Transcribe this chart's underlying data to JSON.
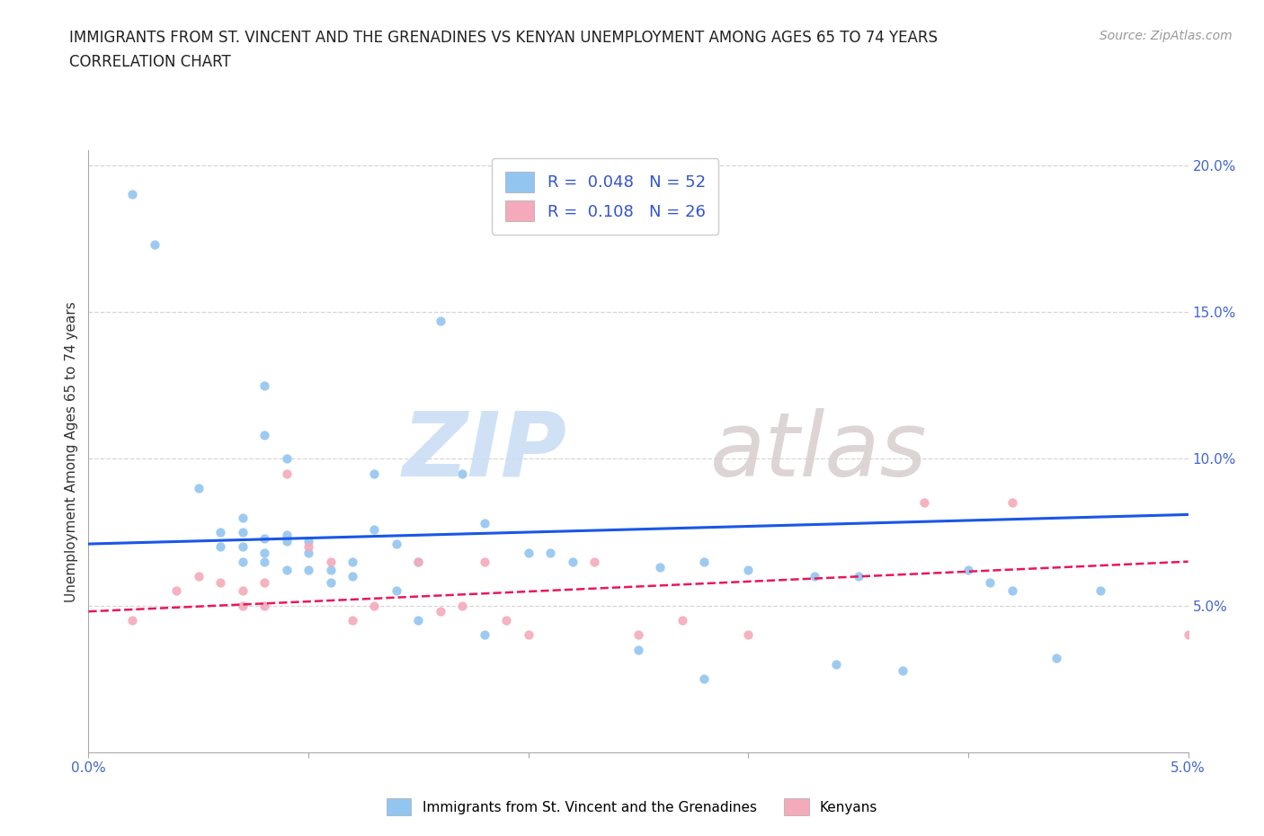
{
  "title_line1": "IMMIGRANTS FROM ST. VINCENT AND THE GRENADINES VS KENYAN UNEMPLOYMENT AMONG AGES 65 TO 74 YEARS",
  "title_line2": "CORRELATION CHART",
  "source_text": "Source: ZipAtlas.com",
  "ylabel": "Unemployment Among Ages 65 to 74 years",
  "xlim": [
    0.0,
    0.05
  ],
  "ylim": [
    0.0,
    0.205
  ],
  "blue_color": "#92C5F0",
  "pink_color": "#F4AABB",
  "blue_line_color": "#1A56E8",
  "pink_line_color": "#E8185A",
  "legend_text_color": "#3355CC",
  "tick_color": "#4466CC",
  "ylabel_color": "#333333",
  "title_color": "#222222",
  "source_color": "#999999",
  "grid_color": "#CCCCCC",
  "background_color": "#FFFFFF",
  "blue_scatter_x": [
    0.002,
    0.003,
    0.005,
    0.006,
    0.006,
    0.007,
    0.007,
    0.007,
    0.007,
    0.008,
    0.008,
    0.008,
    0.008,
    0.008,
    0.009,
    0.009,
    0.009,
    0.009,
    0.01,
    0.01,
    0.01,
    0.011,
    0.011,
    0.012,
    0.012,
    0.013,
    0.013,
    0.014,
    0.014,
    0.015,
    0.015,
    0.016,
    0.017,
    0.018,
    0.018,
    0.02,
    0.021,
    0.022,
    0.025,
    0.026,
    0.028,
    0.028,
    0.03,
    0.033,
    0.034,
    0.035,
    0.037,
    0.04,
    0.041,
    0.042,
    0.044,
    0.046
  ],
  "blue_scatter_y": [
    0.19,
    0.173,
    0.09,
    0.075,
    0.07,
    0.08,
    0.075,
    0.07,
    0.065,
    0.125,
    0.108,
    0.073,
    0.068,
    0.065,
    0.1,
    0.074,
    0.072,
    0.062,
    0.072,
    0.068,
    0.062,
    0.062,
    0.058,
    0.065,
    0.06,
    0.095,
    0.076,
    0.071,
    0.055,
    0.065,
    0.045,
    0.147,
    0.095,
    0.078,
    0.04,
    0.068,
    0.068,
    0.065,
    0.035,
    0.063,
    0.065,
    0.025,
    0.062,
    0.06,
    0.03,
    0.06,
    0.028,
    0.062,
    0.058,
    0.055,
    0.032,
    0.055
  ],
  "pink_scatter_x": [
    0.002,
    0.004,
    0.005,
    0.006,
    0.007,
    0.007,
    0.008,
    0.008,
    0.009,
    0.01,
    0.011,
    0.012,
    0.013,
    0.015,
    0.016,
    0.017,
    0.018,
    0.019,
    0.02,
    0.023,
    0.025,
    0.027,
    0.03,
    0.038,
    0.042,
    0.05
  ],
  "pink_scatter_y": [
    0.045,
    0.055,
    0.06,
    0.058,
    0.055,
    0.05,
    0.058,
    0.05,
    0.095,
    0.07,
    0.065,
    0.045,
    0.05,
    0.065,
    0.048,
    0.05,
    0.065,
    0.045,
    0.04,
    0.065,
    0.04,
    0.045,
    0.04,
    0.085,
    0.085,
    0.04
  ],
  "blue_trend_x": [
    0.0,
    0.05
  ],
  "blue_trend_y": [
    0.071,
    0.081
  ],
  "pink_trend_x": [
    0.0,
    0.05
  ],
  "pink_trend_y": [
    0.048,
    0.065
  ]
}
